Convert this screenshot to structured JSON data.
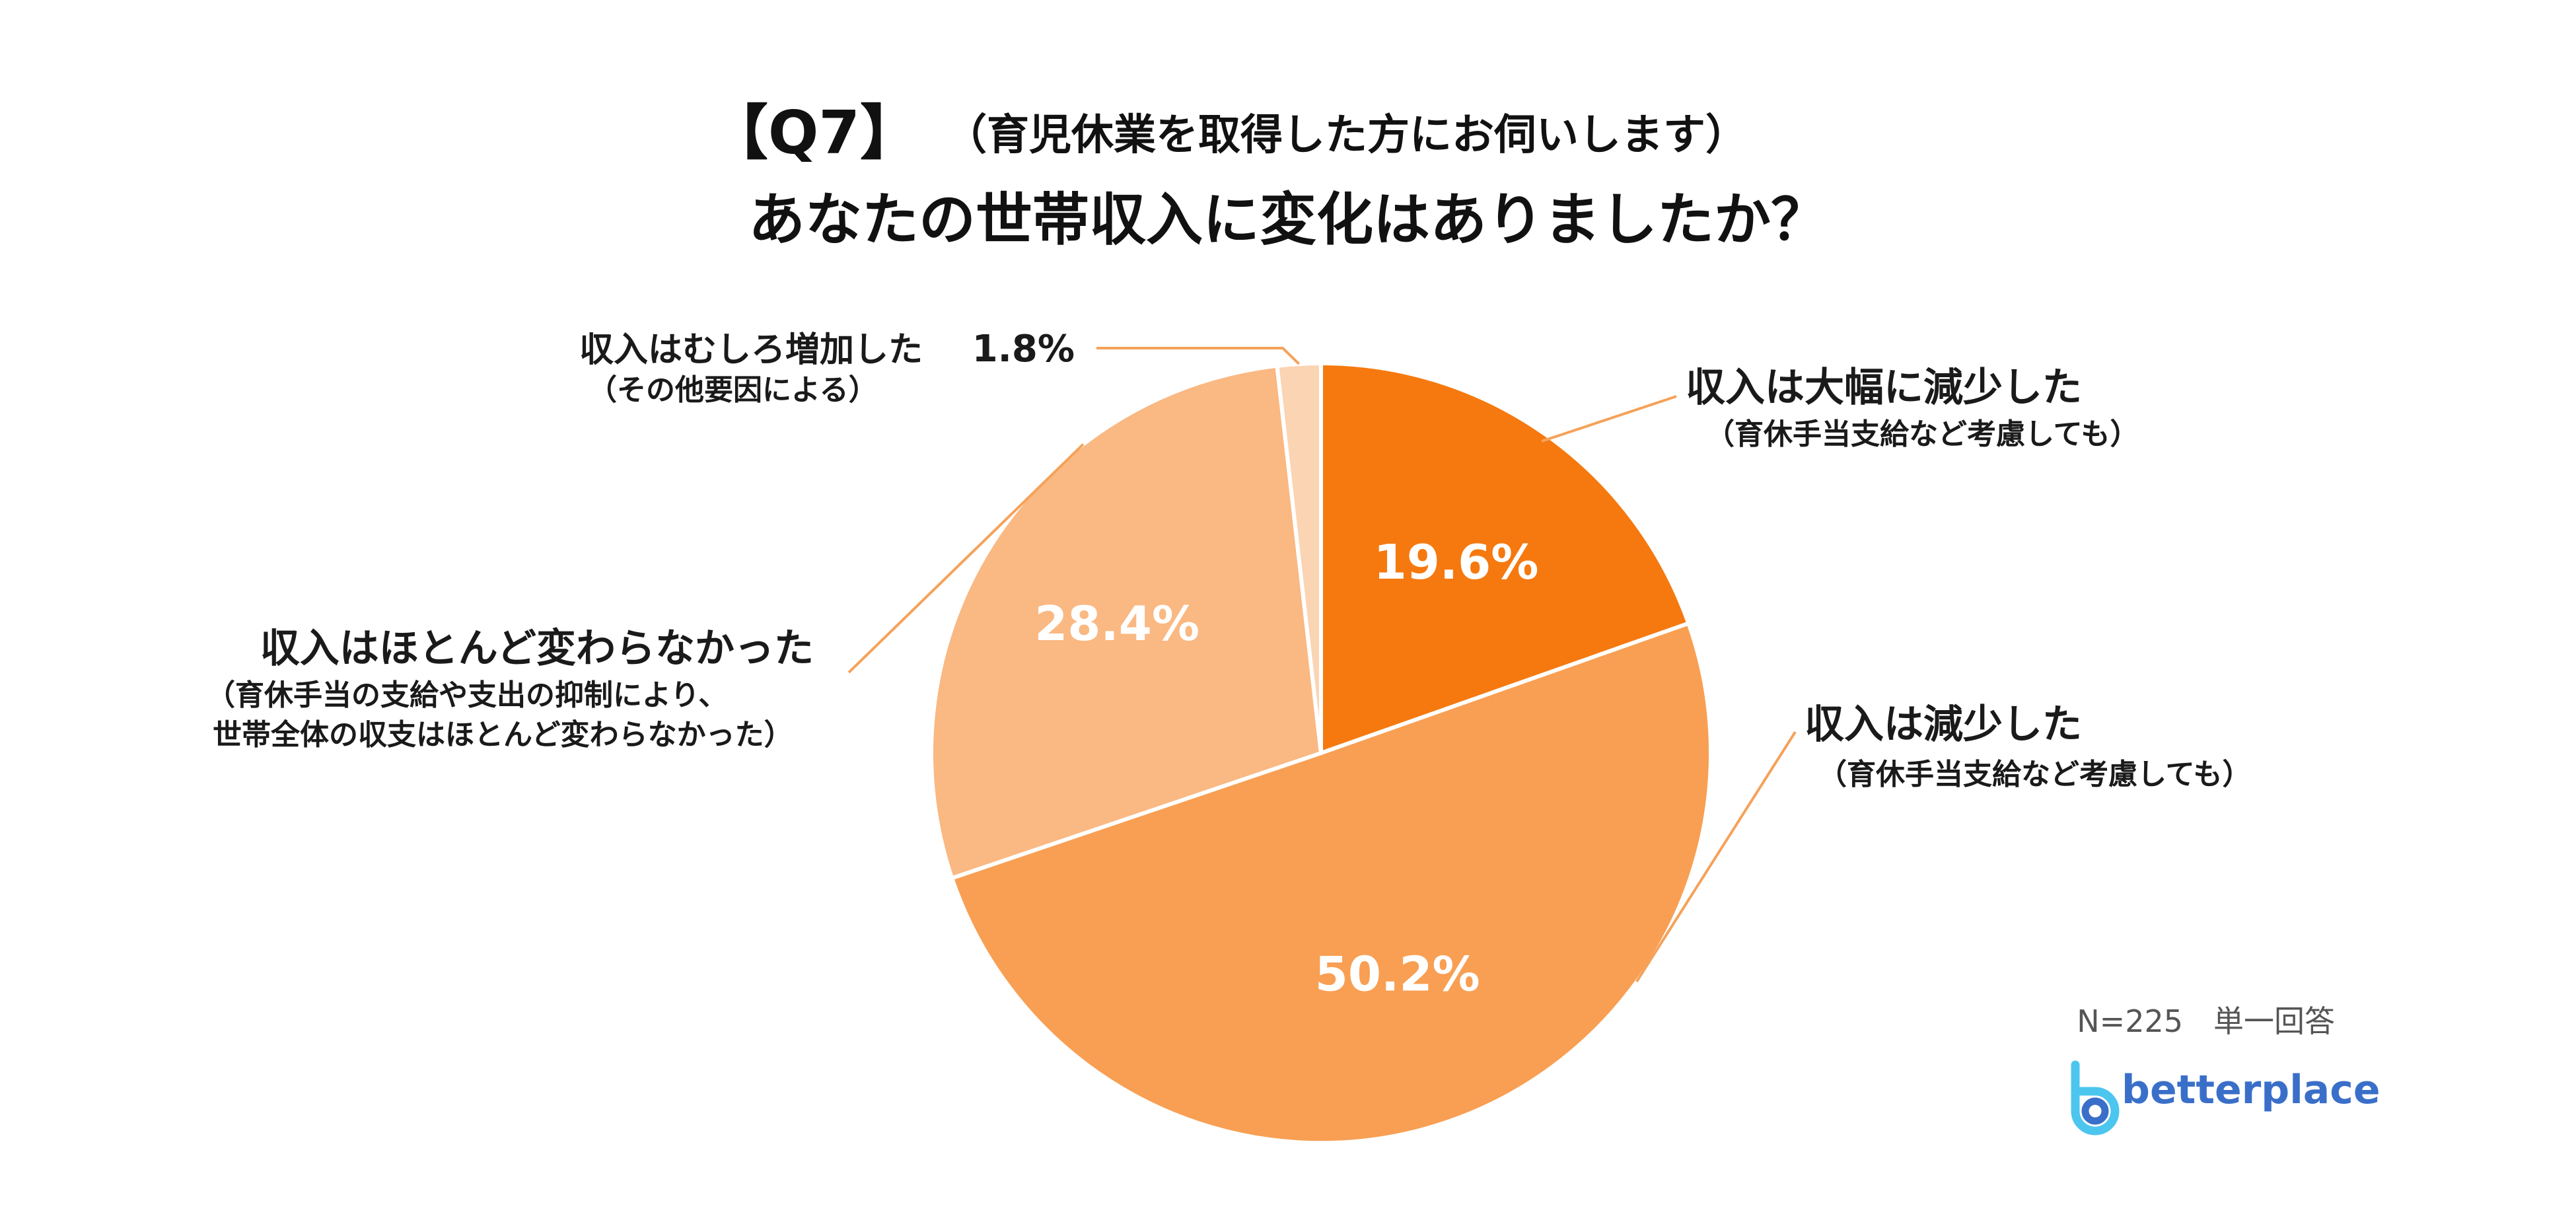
{
  "colors": {
    "slice_decreased_greatly": "#F5790F",
    "slice_decreased": "#F89F53",
    "slice_unchanged": "#FAB882",
    "slice_increased": "#FBD4B4",
    "slice_border": "#ffffff",
    "leader_line": "#F5A25A",
    "brand": "#3a6fc9",
    "brand_light": "#4cc6ee"
  },
  "title": {
    "q_label": "【Q7】",
    "condition": "（育児休業を取得した方にお伺いします）",
    "question": "あなたの世帯収入に変化はありましたか？"
  },
  "footer": {
    "sample": "N=225　単一回答",
    "brand": "betterplace",
    "brand_icon": "betterplace-logo-icon"
  },
  "chart_data": {
    "type": "pie",
    "start_angle_deg": 0,
    "direction": "clockwise",
    "slices": [
      {
        "label": "収入は大幅に減少した",
        "note": "（育休手当支給など考慮しても）",
        "value": 19.6,
        "value_text": "19.6%"
      },
      {
        "label": "収入は減少した",
        "note": "（育休手当支給など考慮しても）",
        "value": 50.2,
        "value_text": "50.2%"
      },
      {
        "label": "収入はほとんど変わらなかった",
        "note": "（育休手当の支給や支出の抑制により、",
        "note2": "世帯全体の収支はほとんど変わらなかった）",
        "value": 28.4,
        "value_text": "28.4%"
      },
      {
        "label": "収入はむしろ増加した",
        "note": "（その他要因による）",
        "value": 1.8,
        "value_text": "1.8%"
      }
    ]
  }
}
